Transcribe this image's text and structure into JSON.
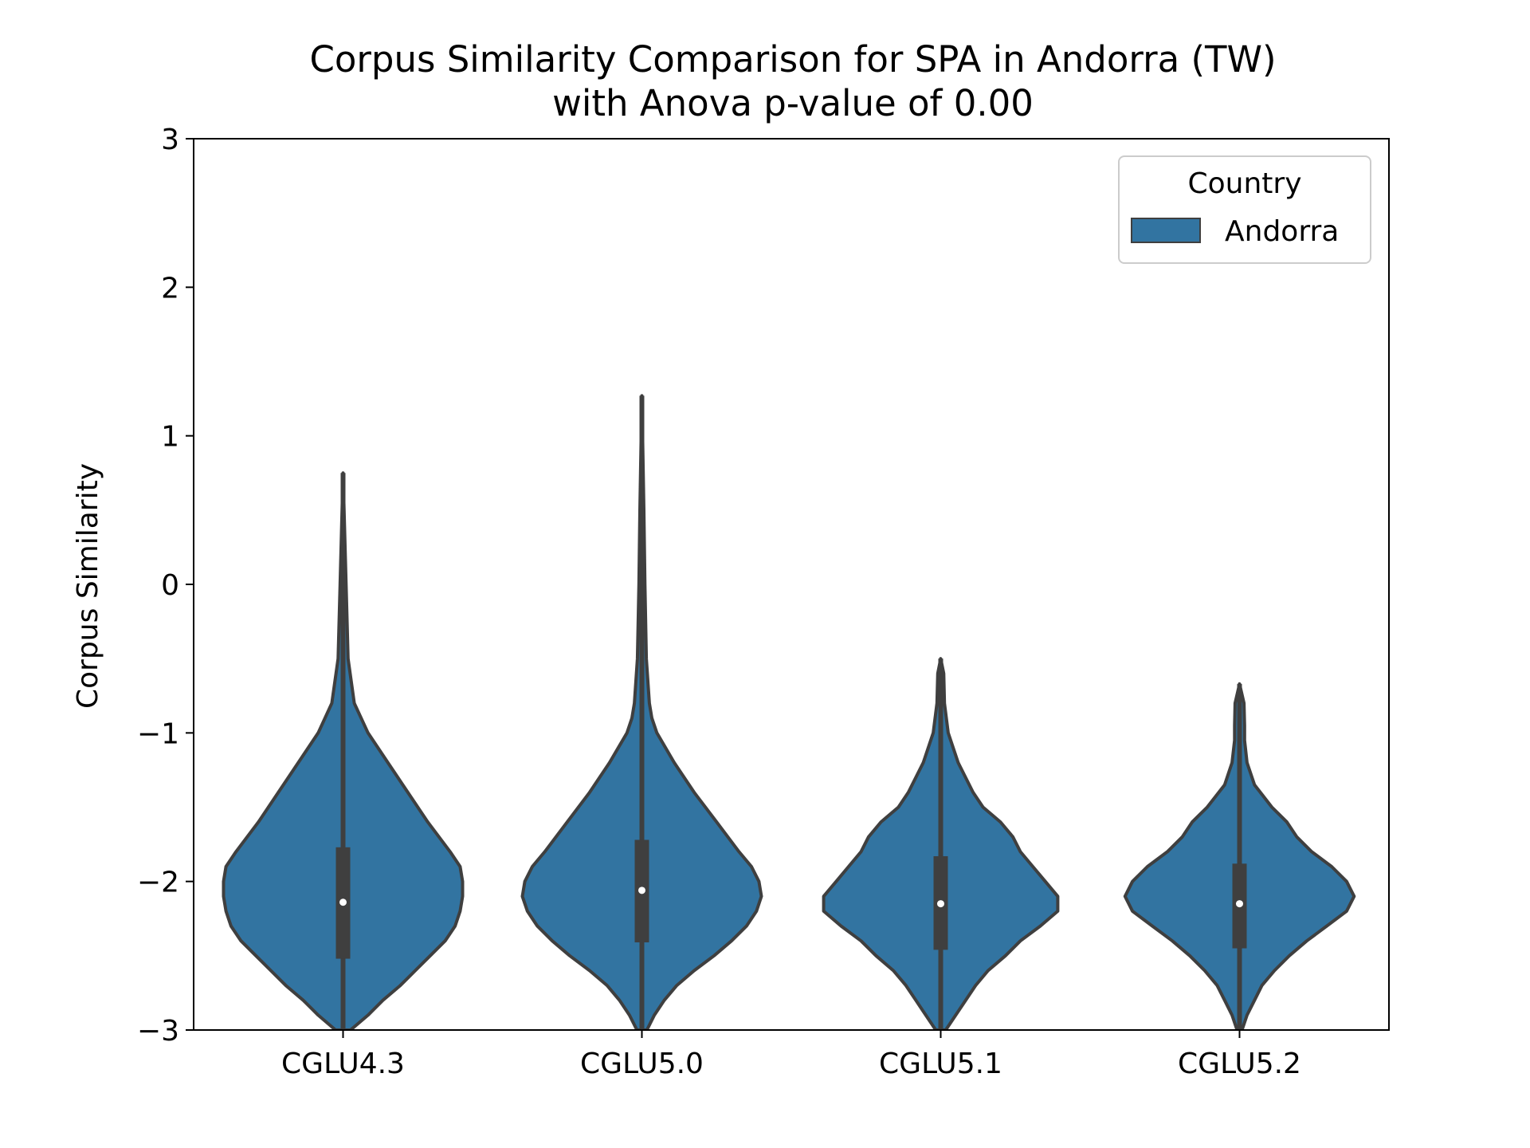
{
  "chart_data": {
    "type": "violin",
    "title": "Corpus Similarity Comparison for SPA in Andorra (TW)",
    "subtitle": "with Anova p-value of 0.00",
    "xlabel": "",
    "ylabel": "Corpus Similarity",
    "ylim": [
      -3,
      3
    ],
    "yticks": [
      -3,
      -2,
      -1,
      0,
      1,
      2,
      3
    ],
    "ytick_labels": [
      "−3",
      "−2",
      "−1",
      "0",
      "1",
      "2",
      "3"
    ],
    "categories": [
      "CGLU4.3",
      "CGLU5.0",
      "CGLU5.1",
      "CGLU5.2"
    ],
    "legend": {
      "title": "Country",
      "entries": [
        "Andorra"
      ],
      "placement": "top-right"
    },
    "colors": {
      "fill": "#3274a1",
      "edge": "#3f3f3f",
      "box": "#3f3f3f",
      "median": "#ffffff"
    },
    "grid": false,
    "series": [
      {
        "name": "Andorra",
        "violins": [
          {
            "category": "CGLU4.3",
            "max": 0.75,
            "q1": -2.52,
            "median": -2.14,
            "q3": -1.77,
            "profile": [
              [
                0.75,
                0.0
              ],
              [
                0.0,
                0.012
              ],
              [
                -0.5,
                0.02
              ],
              [
                -0.8,
                0.045
              ],
              [
                -1.0,
                0.1
              ],
              [
                -1.2,
                0.18
              ],
              [
                -1.4,
                0.26
              ],
              [
                -1.6,
                0.34
              ],
              [
                -1.8,
                0.43
              ],
              [
                -1.9,
                0.47
              ],
              [
                -2.0,
                0.48
              ],
              [
                -2.1,
                0.48
              ],
              [
                -2.2,
                0.47
              ],
              [
                -2.3,
                0.45
              ],
              [
                -2.4,
                0.41
              ],
              [
                -2.5,
                0.35
              ],
              [
                -2.6,
                0.29
              ],
              [
                -2.7,
                0.23
              ],
              [
                -2.8,
                0.16
              ],
              [
                -2.9,
                0.1
              ],
              [
                -3.0,
                0.03
              ]
            ]
          },
          {
            "category": "CGLU5.0",
            "max": 1.27,
            "q1": -2.41,
            "median": -2.06,
            "q3": -1.72,
            "profile": [
              [
                1.27,
                0.0
              ],
              [
                0.5,
                0.008
              ],
              [
                0.0,
                0.012
              ],
              [
                -0.5,
                0.018
              ],
              [
                -0.8,
                0.03
              ],
              [
                -0.9,
                0.04
              ],
              [
                -1.0,
                0.06
              ],
              [
                -1.2,
                0.13
              ],
              [
                -1.4,
                0.21
              ],
              [
                -1.6,
                0.3
              ],
              [
                -1.8,
                0.39
              ],
              [
                -1.9,
                0.44
              ],
              [
                -2.0,
                0.47
              ],
              [
                -2.1,
                0.48
              ],
              [
                -2.2,
                0.46
              ],
              [
                -2.3,
                0.42
              ],
              [
                -2.4,
                0.36
              ],
              [
                -2.5,
                0.29
              ],
              [
                -2.6,
                0.21
              ],
              [
                -2.7,
                0.14
              ],
              [
                -2.8,
                0.09
              ],
              [
                -2.9,
                0.05
              ],
              [
                -3.0,
                0.02
              ]
            ]
          },
          {
            "category": "CGLU5.1",
            "max": -0.5,
            "q1": -2.46,
            "median": -2.15,
            "q3": -1.83,
            "profile": [
              [
                -0.5,
                0.0
              ],
              [
                -0.6,
                0.012
              ],
              [
                -0.8,
                0.015
              ],
              [
                -1.0,
                0.03
              ],
              [
                -1.2,
                0.07
              ],
              [
                -1.4,
                0.13
              ],
              [
                -1.5,
                0.17
              ],
              [
                -1.6,
                0.24
              ],
              [
                -1.7,
                0.29
              ],
              [
                -1.8,
                0.32
              ],
              [
                -1.9,
                0.37
              ],
              [
                -2.0,
                0.42
              ],
              [
                -2.1,
                0.47
              ],
              [
                -2.2,
                0.47
              ],
              [
                -2.3,
                0.4
              ],
              [
                -2.4,
                0.32
              ],
              [
                -2.5,
                0.26
              ],
              [
                -2.6,
                0.19
              ],
              [
                -2.7,
                0.14
              ],
              [
                -2.8,
                0.1
              ],
              [
                -2.9,
                0.06
              ],
              [
                -3.0,
                0.02
              ]
            ]
          },
          {
            "category": "CGLU5.2",
            "max": -0.67,
            "q1": -2.45,
            "median": -2.15,
            "q3": -1.88,
            "profile": [
              [
                -0.67,
                0.0
              ],
              [
                -0.8,
                0.018
              ],
              [
                -0.95,
                0.02
              ],
              [
                -1.05,
                0.02
              ],
              [
                -1.2,
                0.03
              ],
              [
                -1.35,
                0.06
              ],
              [
                -1.5,
                0.13
              ],
              [
                -1.6,
                0.19
              ],
              [
                -1.7,
                0.23
              ],
              [
                -1.8,
                0.29
              ],
              [
                -1.9,
                0.37
              ],
              [
                -2.0,
                0.43
              ],
              [
                -2.1,
                0.46
              ],
              [
                -2.2,
                0.43
              ],
              [
                -2.3,
                0.35
              ],
              [
                -2.4,
                0.27
              ],
              [
                -2.5,
                0.2
              ],
              [
                -2.6,
                0.14
              ],
              [
                -2.7,
                0.09
              ],
              [
                -2.8,
                0.06
              ],
              [
                -2.9,
                0.03
              ],
              [
                -3.0,
                0.01
              ]
            ]
          }
        ]
      }
    ]
  }
}
